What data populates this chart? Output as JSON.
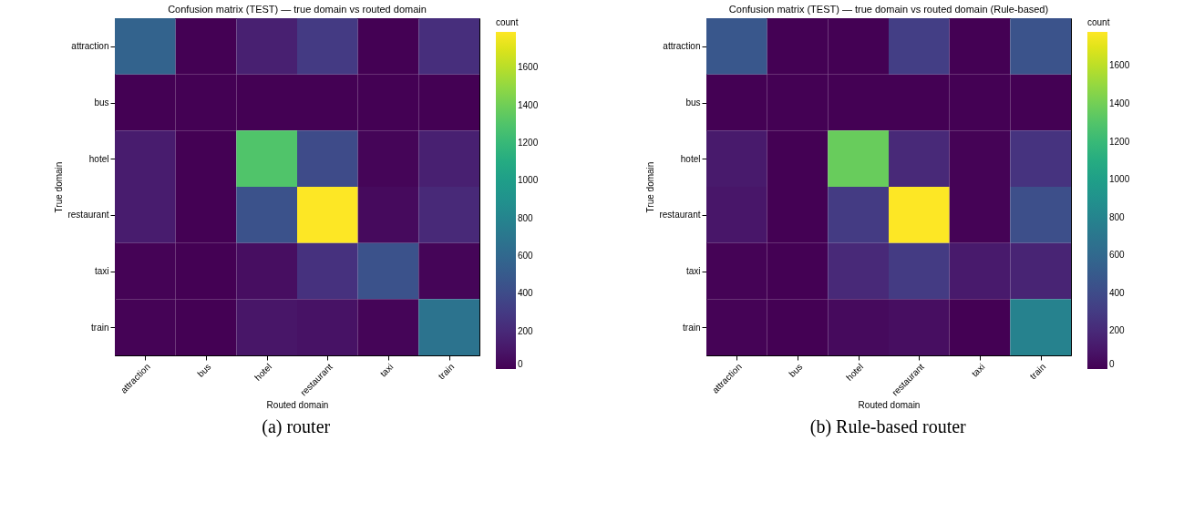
{
  "chart_data": [
    {
      "type": "heatmap",
      "title": "Confusion matrix (TEST) — true domain vs routed domain",
      "xlabel": "Routed domain",
      "ylabel": "True domain",
      "clabel": "count",
      "categories": [
        "attraction",
        "bus",
        "hotel",
        "restaurant",
        "taxi",
        "train"
      ],
      "y_categories": [
        "attraction",
        "bus",
        "hotel",
        "restaurant",
        "taxi",
        "train"
      ],
      "cells": [
        [
          560,
          0,
          150,
          300,
          0,
          230
        ],
        [
          0,
          0,
          0,
          0,
          0,
          0
        ],
        [
          130,
          0,
          1300,
          400,
          20,
          150
        ],
        [
          130,
          0,
          450,
          1790,
          40,
          200
        ],
        [
          10,
          0,
          60,
          250,
          450,
          20
        ],
        [
          10,
          0,
          100,
          80,
          20,
          680
        ]
      ],
      "clim": [
        0,
        1790
      ],
      "cticks": [
        0,
        200,
        400,
        600,
        800,
        1000,
        1200,
        1400,
        1600
      ],
      "annotations": [
        "(a) router"
      ]
    },
    {
      "type": "heatmap",
      "title": "Confusion matrix (TEST) — true domain vs routed domain (Rule-based)",
      "xlabel": "Routed domain",
      "ylabel": "True domain",
      "clabel": "count",
      "categories": [
        "attraction",
        "bus",
        "hotel",
        "restaurant",
        "taxi",
        "train"
      ],
      "y_categories": [
        "attraction",
        "bus",
        "hotel",
        "restaurant",
        "taxi",
        "train"
      ],
      "cells": [
        [
          480,
          0,
          0,
          320,
          0,
          450
        ],
        [
          0,
          0,
          0,
          0,
          0,
          0
        ],
        [
          120,
          0,
          1370,
          200,
          10,
          260
        ],
        [
          100,
          0,
          300,
          1780,
          10,
          420
        ],
        [
          10,
          0,
          200,
          300,
          120,
          170
        ],
        [
          10,
          0,
          40,
          60,
          0,
          780
        ]
      ],
      "clim": [
        0,
        1780
      ],
      "cticks": [
        0,
        200,
        400,
        600,
        800,
        1000,
        1200,
        1400,
        1600
      ],
      "annotations": [
        "(b) Rule-based router"
      ]
    }
  ]
}
